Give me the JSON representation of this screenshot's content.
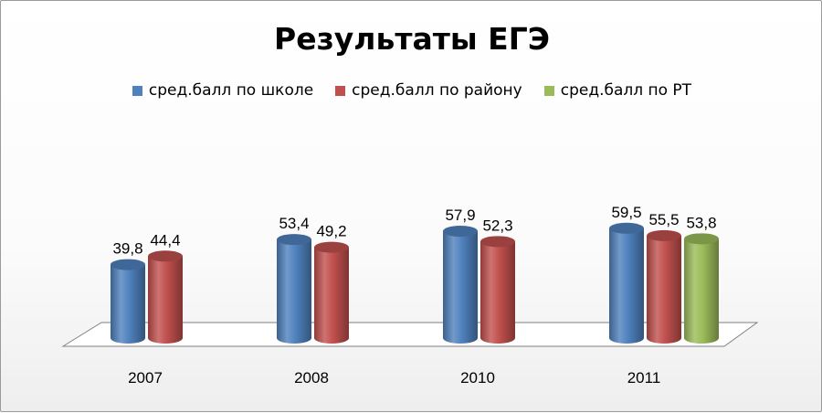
{
  "chart_data": {
    "type": "bar",
    "title": "Результаты ЕГЭ",
    "categories": [
      "2007",
      "2008",
      "2010",
      "2011"
    ],
    "series": [
      {
        "name": "сред.балл по школе",
        "color": "#4f81bd",
        "values": [
          39.8,
          53.4,
          57.9,
          59.5
        ],
        "labels": [
          "39,8",
          "53,4",
          "57,9",
          "59,5"
        ]
      },
      {
        "name": "сред.балл по району",
        "color": "#c0504d",
        "values": [
          44.4,
          49.2,
          52.3,
          55.5
        ],
        "labels": [
          "44,4",
          "49,2",
          "52,3",
          "55,5"
        ]
      },
      {
        "name": "сред.балл по РТ",
        "color": "#9bbb59",
        "values": [
          null,
          null,
          null,
          53.8
        ],
        "labels": [
          null,
          null,
          null,
          "53,8"
        ]
      }
    ],
    "style": "3d-cylinder",
    "legend_position": "top",
    "grid": false
  }
}
